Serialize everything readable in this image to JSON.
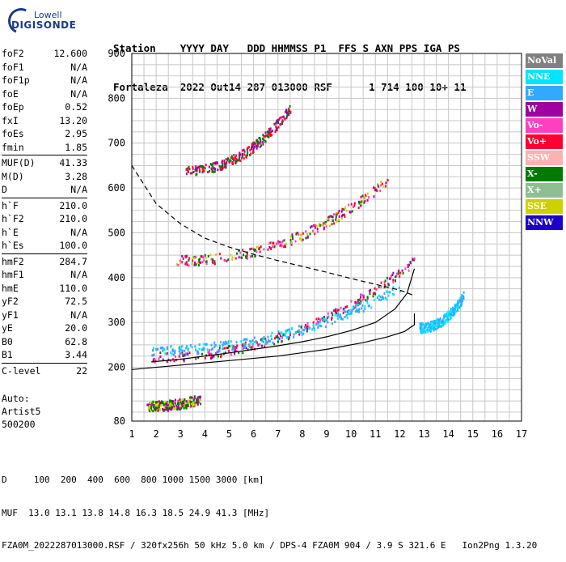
{
  "logo": {
    "line1": "Lowell",
    "line2": "DIGISONDE"
  },
  "header": {
    "line1": "Station    YYYY DAY   DDD HHMMSS P1  FFS S AXN PPS IGA PS",
    "line2": "Fortaleza  2022 Out14 287 013000 RSF      1 714 100 10+ 11"
  },
  "params": [
    {
      "name": "foF2",
      "value": "12.600"
    },
    {
      "name": "foF1",
      "value": "N/A"
    },
    {
      "name": "foF1p",
      "value": "N/A"
    },
    {
      "name": "foE",
      "value": "N/A"
    },
    {
      "name": "foEp",
      "value": "0.52"
    },
    {
      "name": "fxI",
      "value": "13.20"
    },
    {
      "name": "foEs",
      "value": "2.95"
    },
    {
      "name": "fmin",
      "value": "1.85"
    },
    {
      "sep": true
    },
    {
      "name": "MUF(D)",
      "value": "41.33"
    },
    {
      "name": "M(D)",
      "value": "3.28"
    },
    {
      "name": "D",
      "value": "N/A"
    },
    {
      "sep": true
    },
    {
      "name": "h`F",
      "value": "210.0"
    },
    {
      "name": "h`F2",
      "value": "210.0"
    },
    {
      "name": "h`E",
      "value": "N/A"
    },
    {
      "name": "h`Es",
      "value": "100.0"
    },
    {
      "sep": true
    },
    {
      "name": "hmF2",
      "value": "284.7"
    },
    {
      "name": "hmF1",
      "value": "N/A"
    },
    {
      "name": "hmE",
      "value": "110.0"
    },
    {
      "name": "yF2",
      "value": "72.5"
    },
    {
      "name": "yF1",
      "value": "N/A"
    },
    {
      "name": "yE",
      "value": "20.0"
    },
    {
      "name": "B0",
      "value": "62.8"
    },
    {
      "name": "B1",
      "value": "3.44"
    },
    {
      "sep": true
    },
    {
      "name": "C-level",
      "value": "22"
    }
  ],
  "auto": [
    "Auto:",
    "Artist5",
    "500200"
  ],
  "legend": [
    {
      "label": "NoVal",
      "color": "#808080"
    },
    {
      "label": "NNE",
      "color": "#00e5ff"
    },
    {
      "label": "E",
      "color": "#33a8ff"
    },
    {
      "label": "W",
      "color": "#a000a0"
    },
    {
      "label": "Vo-",
      "color": "#ff3fbf"
    },
    {
      "label": "Vo+",
      "color": "#ff0033"
    },
    {
      "label": "SSW",
      "color": "#ffb0b0"
    },
    {
      "label": "X-",
      "color": "#007a00"
    },
    {
      "label": "X+",
      "color": "#8fbf8f"
    },
    {
      "label": "SSE",
      "color": "#cfd000"
    },
    {
      "label": "NNW",
      "color": "#1a00c8"
    }
  ],
  "footer": {
    "line1": "D     100  200  400  600  800 1000 1500 3000 [km]",
    "line2": "MUF  13.0 13.1 13.8 14.8 16.3 18.5 24.9 41.3 [MHz]",
    "line3": "FZA0M_2022287013000.RSF / 320fx256h 50 kHz 5.0 km / DPS-4 FZA0M 904 / 3.9 S 321.6 E   Ion2Png 1.3.20"
  },
  "chart_data": {
    "type": "scatter",
    "x_ticks": [
      "1",
      "2",
      "3",
      "4",
      "5",
      "6",
      "7",
      "8",
      "9",
      "10",
      "11",
      "12",
      "13",
      "14",
      "15",
      "16",
      "17"
    ],
    "y_ticks": [
      "80",
      "200",
      "300",
      "400",
      "500",
      "600",
      "700",
      "800",
      "900"
    ],
    "xlim": [
      1,
      17
    ],
    "ylim": [
      80,
      900
    ],
    "grid": true,
    "legend_position": "right",
    "curves": {
      "o_trace_profile": {
        "x": [
          1.8,
          3.0,
          4.0,
          5.0,
          6.0,
          7.0,
          8.0,
          9.0,
          10.0,
          11.0,
          11.8,
          12.3,
          12.6
        ],
        "y": [
          212,
          218,
          225,
          232,
          240,
          248,
          257,
          268,
          282,
          300,
          330,
          365,
          420
        ]
      },
      "solid_profile": {
        "x": [
          1.0,
          3.0,
          5.0,
          7.0,
          9.0,
          10.5,
          11.5,
          12.2,
          12.6,
          12.6
        ],
        "y": [
          195,
          205,
          215,
          225,
          240,
          255,
          268,
          280,
          295,
          320
        ]
      },
      "muf_dashed": {
        "x": [
          1.0,
          2.0,
          3.0,
          4.0,
          5.0,
          6.0,
          7.0,
          8.0,
          9.0,
          10.0,
          11.0,
          12.0,
          12.6
        ],
        "y": [
          650,
          565,
          520,
          488,
          468,
          452,
          438,
          425,
          412,
          398,
          385,
          372,
          360
        ]
      }
    },
    "traces": [
      {
        "name": "F2 o-trace",
        "x_start": 1.8,
        "x_end": 12.6,
        "y_start": 225,
        "y_end": 440,
        "colors": [
          "#ff0033",
          "#ff3fbf",
          "#007a00",
          "#a000a0"
        ]
      },
      {
        "name": "F2 x-trace",
        "x_start": 1.8,
        "x_end": 12.0,
        "y_start": 240,
        "y_end": 380,
        "colors": [
          "#33a8ff",
          "#00e5ff",
          "#33a8ff"
        ]
      },
      {
        "name": "2nd hop",
        "x_start": 2.8,
        "x_end": 11.5,
        "y_start": 440,
        "y_end": 620,
        "colors": [
          "#ff0033",
          "#ff3fbf",
          "#cfd000",
          "#a000a0",
          "#007a00"
        ]
      },
      {
        "name": "3rd hop",
        "x_start": 3.2,
        "x_end": 7.5,
        "y_start": 640,
        "y_end": 780,
        "colors": [
          "#ff0033",
          "#a000a0",
          "#007a00"
        ]
      },
      {
        "name": "Es",
        "x_start": 1.6,
        "x_end": 3.8,
        "y_start": 115,
        "y_end": 130,
        "colors": [
          "#007a00",
          "#cfd000",
          "#a000a0"
        ]
      },
      {
        "name": "spread",
        "x_start": 12.8,
        "x_end": 14.6,
        "y_start": 290,
        "y_end": 360,
        "colors": [
          "#00e5ff",
          "#33a8ff"
        ]
      }
    ]
  }
}
